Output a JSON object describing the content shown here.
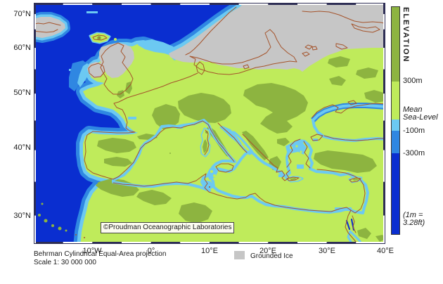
{
  "colors": {
    "deep_sea": "#0a2ed0",
    "mid_sea": "#2f87e2",
    "shallow_sea": "#6cc9f2",
    "lowland": "#bfeb5b",
    "upland": "#8db440",
    "ice": "#c6c6c6",
    "coastline": "#a5542c",
    "frame": "#2e2e55",
    "box_bg": "#fcfcf0",
    "text": "#1a1a1a"
  },
  "map": {
    "copyright": "©Proudman Oceanographic Laboratories"
  },
  "axes": {
    "lat": [
      {
        "label": "70°N"
      },
      {
        "label": "60°N"
      },
      {
        "label": "50°N"
      },
      {
        "label": "40°N"
      },
      {
        "label": "30°N"
      }
    ],
    "lon": [
      {
        "label": "10°W"
      },
      {
        "label": "0°"
      },
      {
        "label": "10°E"
      },
      {
        "label": "20°E"
      },
      {
        "label": "30°E"
      },
      {
        "label": "40°E"
      }
    ]
  },
  "colorbar": {
    "title": "ELEVATION",
    "label_300": "300m",
    "label_mean_1": "Mean",
    "label_mean_2": "Sea-Level",
    "label_m100": "-100m",
    "label_m300": "-300m",
    "note_1": "(1m =",
    "note_2": "3.28ft)"
  },
  "legend": {
    "grounded_ice": "Grounded Ice"
  },
  "footer": {
    "projection": "Behrman Cylindrical Equal-Area projection",
    "scale": "Scale 1: 30 000 000"
  }
}
